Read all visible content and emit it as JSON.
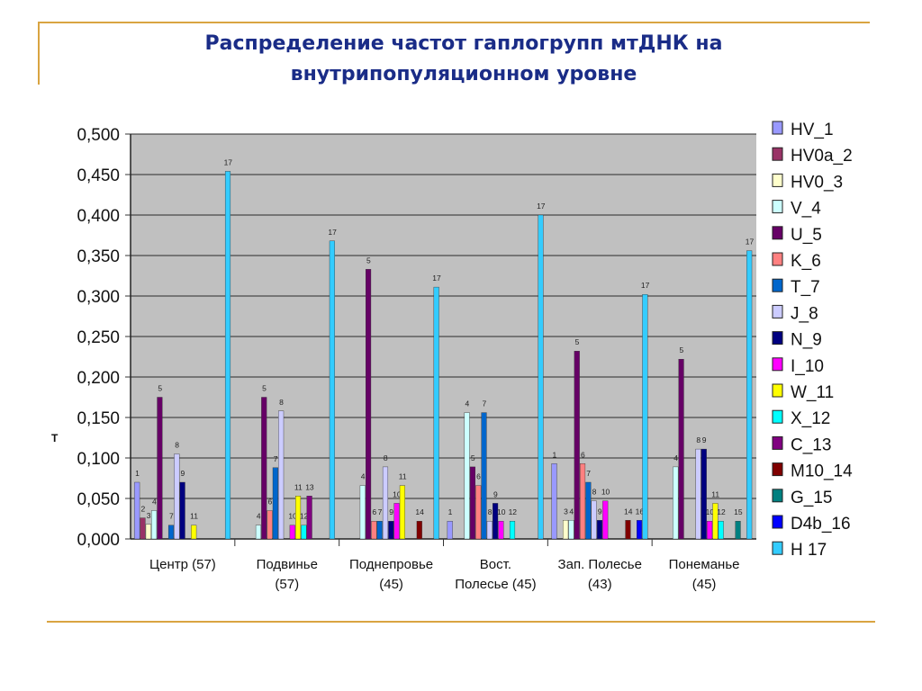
{
  "slide": {
    "title_line1": "Распределение частот гаплогрупп мтДНК на",
    "title_line2": "внутрипопуляционном уровне"
  },
  "colors": {
    "rule": "#d9a441",
    "title": "#1a2c87",
    "plot_bg": "#c0c0c0"
  },
  "chart_data": {
    "type": "bar",
    "ylabel": "Т",
    "ylim": [
      0,
      0.5
    ],
    "yticks": [
      "0,000",
      "0,050",
      "0,100",
      "0,150",
      "0,200",
      "0,250",
      "0,300",
      "0,350",
      "0,400",
      "0,450",
      "0,500"
    ],
    "grid": true,
    "legend_position": "right",
    "categories": [
      [
        "Центр (57)"
      ],
      [
        "Подвинье",
        "(57)"
      ],
      [
        "Поднепровье",
        "(45)"
      ],
      [
        "Вост.",
        "Полесье (45)"
      ],
      [
        "Зап. Полесье",
        "(43)"
      ],
      [
        "Понеманье",
        "(45)"
      ]
    ],
    "series": [
      {
        "name": "HV_1",
        "label": "1",
        "color": "#9999ff",
        "values": [
          0.07,
          0.0,
          0.0,
          0.022,
          0.093,
          0.0
        ]
      },
      {
        "name": "HV0a_2",
        "label": "2",
        "color": "#993366",
        "values": [
          0.026,
          0.0,
          0.0,
          0.0,
          0.0,
          0.0
        ]
      },
      {
        "name": "HV0_3",
        "label": "3",
        "color": "#ffffcc",
        "values": [
          0.018,
          0.0,
          0.0,
          0.0,
          0.023,
          0.0
        ]
      },
      {
        "name": "V_4",
        "label": "4",
        "color": "#ccffff",
        "values": [
          0.035,
          0.017,
          0.066,
          0.156,
          0.023,
          0.089
        ]
      },
      {
        "name": "U_5",
        "label": "5",
        "color": "#660066",
        "values": [
          0.175,
          0.175,
          0.333,
          0.089,
          0.232,
          0.222
        ]
      },
      {
        "name": "K_6",
        "label": "6",
        "color": "#ff8080",
        "values": [
          0.0,
          0.035,
          0.022,
          0.066,
          0.093,
          0.0
        ]
      },
      {
        "name": "T_7",
        "label": "7",
        "color": "#0066cc",
        "values": [
          0.017,
          0.088,
          0.022,
          0.156,
          0.07,
          0.0
        ]
      },
      {
        "name": "J_8",
        "label": "8",
        "color": "#ccccff",
        "values": [
          0.105,
          0.158,
          0.089,
          0.022,
          0.047,
          0.111
        ]
      },
      {
        "name": "N_9",
        "label": "9",
        "color": "#000080",
        "values": [
          0.07,
          0.0,
          0.022,
          0.044,
          0.023,
          0.111
        ]
      },
      {
        "name": "I_10",
        "label": "10",
        "color": "#ff00ff",
        "values": [
          0.0,
          0.017,
          0.044,
          0.022,
          0.047,
          0.022
        ]
      },
      {
        "name": "W_11",
        "label": "11",
        "color": "#ffff00",
        "values": [
          0.017,
          0.053,
          0.066,
          0.0,
          0.0,
          0.044
        ]
      },
      {
        "name": "X_12",
        "label": "12",
        "color": "#00ffff",
        "values": [
          0.0,
          0.017,
          0.0,
          0.022,
          0.0,
          0.022
        ]
      },
      {
        "name": "C_13",
        "label": "13",
        "color": "#800080",
        "values": [
          0.0,
          0.053,
          0.0,
          0.0,
          0.0,
          0.0
        ]
      },
      {
        "name": "M10_14",
        "label": "14",
        "color": "#800000",
        "values": [
          0.0,
          0.0,
          0.022,
          0.0,
          0.023,
          0.0
        ]
      },
      {
        "name": "G_15",
        "label": "15",
        "color": "#008080",
        "values": [
          0.0,
          0.0,
          0.0,
          0.0,
          0.0,
          0.022
        ]
      },
      {
        "name": "D4b_16",
        "label": "16",
        "color": "#0000ff",
        "values": [
          0.0,
          0.0,
          0.0,
          0.0,
          0.023,
          0.0
        ]
      },
      {
        "name": "H  17",
        "label": "17",
        "color": "#33ccff",
        "values": [
          0.454,
          0.368,
          0.311,
          0.4,
          0.302,
          0.356
        ]
      }
    ]
  }
}
